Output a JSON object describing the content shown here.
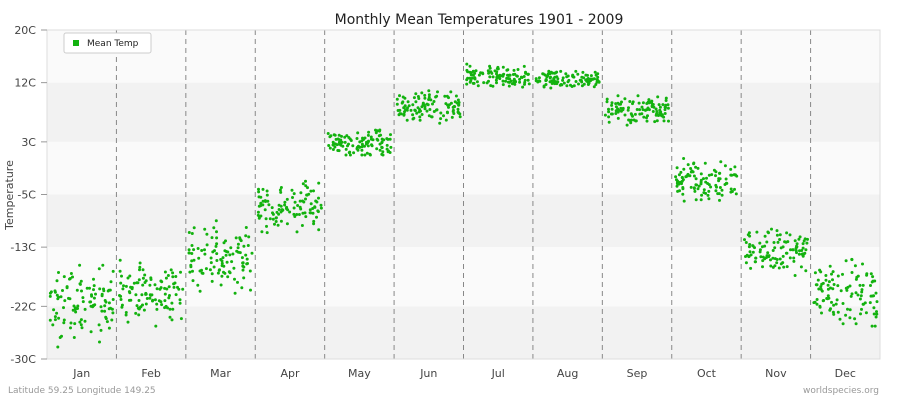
{
  "chart_data": {
    "type": "scatter",
    "title": "Monthly Mean Temperatures 1901 - 2009",
    "ylabel": "Temperature",
    "xlabel": "",
    "y_ticks": [
      "20C",
      "12C",
      "3C",
      "-5C",
      "-13C",
      "-22C",
      "-30C"
    ],
    "ylim": [
      -30,
      20
    ],
    "categories": [
      "Jan",
      "Feb",
      "Mar",
      "Apr",
      "May",
      "Jun",
      "Jul",
      "Aug",
      "Sep",
      "Oct",
      "Nov",
      "Dec"
    ],
    "series": [
      {
        "name": "Mean Temp",
        "color": "#13b20f",
        "points_per_month": 109,
        "monthly_ranges": [
          [
            -28.5,
            -14.0
          ],
          [
            -25.0,
            -15.0
          ],
          [
            -20.0,
            -9.0
          ],
          [
            -12.0,
            -3.0
          ],
          [
            1.0,
            6.0
          ],
          [
            5.0,
            11.0
          ],
          [
            11.0,
            15.0
          ],
          [
            11.0,
            14.0
          ],
          [
            5.0,
            10.0
          ],
          [
            -6.0,
            1.0
          ],
          [
            -18.0,
            -9.0
          ],
          [
            -25.0,
            -12.0
          ]
        ],
        "monthly_means": [
          -21.5,
          -20.0,
          -14.5,
          -7.0,
          2.8,
          8.0,
          12.8,
          12.5,
          8.0,
          -3.0,
          -13.5,
          -20.0
        ]
      }
    ],
    "legend": {
      "label": "Mean Temp",
      "position": "top-left"
    },
    "grid": true
  },
  "footer": {
    "left": "Latitude 59.25 Longitude 149.25",
    "right": "worldspecies.org"
  }
}
